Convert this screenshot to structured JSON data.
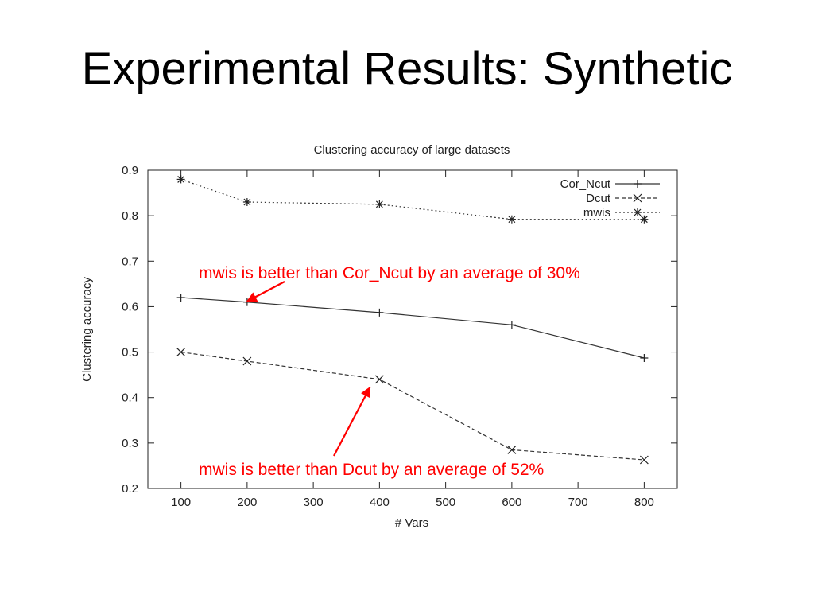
{
  "slide": {
    "title": "Experimental Results: Synthetic"
  },
  "chart_data": {
    "type": "line",
    "title": "Clustering accuracy of large datasets",
    "xlabel": "# Vars",
    "ylabel": "Clustering accuracy",
    "xlim": [
      50,
      850
    ],
    "ylim": [
      0.2,
      0.9
    ],
    "xticks": [
      100,
      200,
      300,
      400,
      500,
      600,
      700,
      800
    ],
    "yticks": [
      0.2,
      0.3,
      0.4,
      0.5,
      0.6,
      0.7,
      0.8,
      0.9
    ],
    "grid": false,
    "legend_position": "top-right",
    "series": [
      {
        "name": "Cor_Ncut",
        "marker": "plus",
        "dash": "solid",
        "x": [
          100,
          200,
          400,
          600,
          800
        ],
        "y": [
          0.62,
          0.61,
          0.587,
          0.56,
          0.487
        ]
      },
      {
        "name": "Dcut",
        "marker": "x",
        "dash": "dashed",
        "x": [
          100,
          200,
          400,
          600,
          800
        ],
        "y": [
          0.5,
          0.48,
          0.44,
          0.285,
          0.263
        ]
      },
      {
        "name": "mwis",
        "marker": "star",
        "dash": "dotted",
        "x": [
          100,
          200,
          400,
          600,
          800
        ],
        "y": [
          0.88,
          0.83,
          0.825,
          0.792,
          0.792
        ]
      }
    ],
    "annotations": [
      {
        "text": "mwis is better than Cor_Ncut by an average of 30%",
        "color": "#ff0000",
        "arrow_to": {
          "x": 200,
          "y": 0.61
        }
      },
      {
        "text": "mwis is better than Dcut by an average of 52%",
        "color": "#ff0000",
        "arrow_to": {
          "x": 400,
          "y": 0.44
        }
      }
    ]
  }
}
